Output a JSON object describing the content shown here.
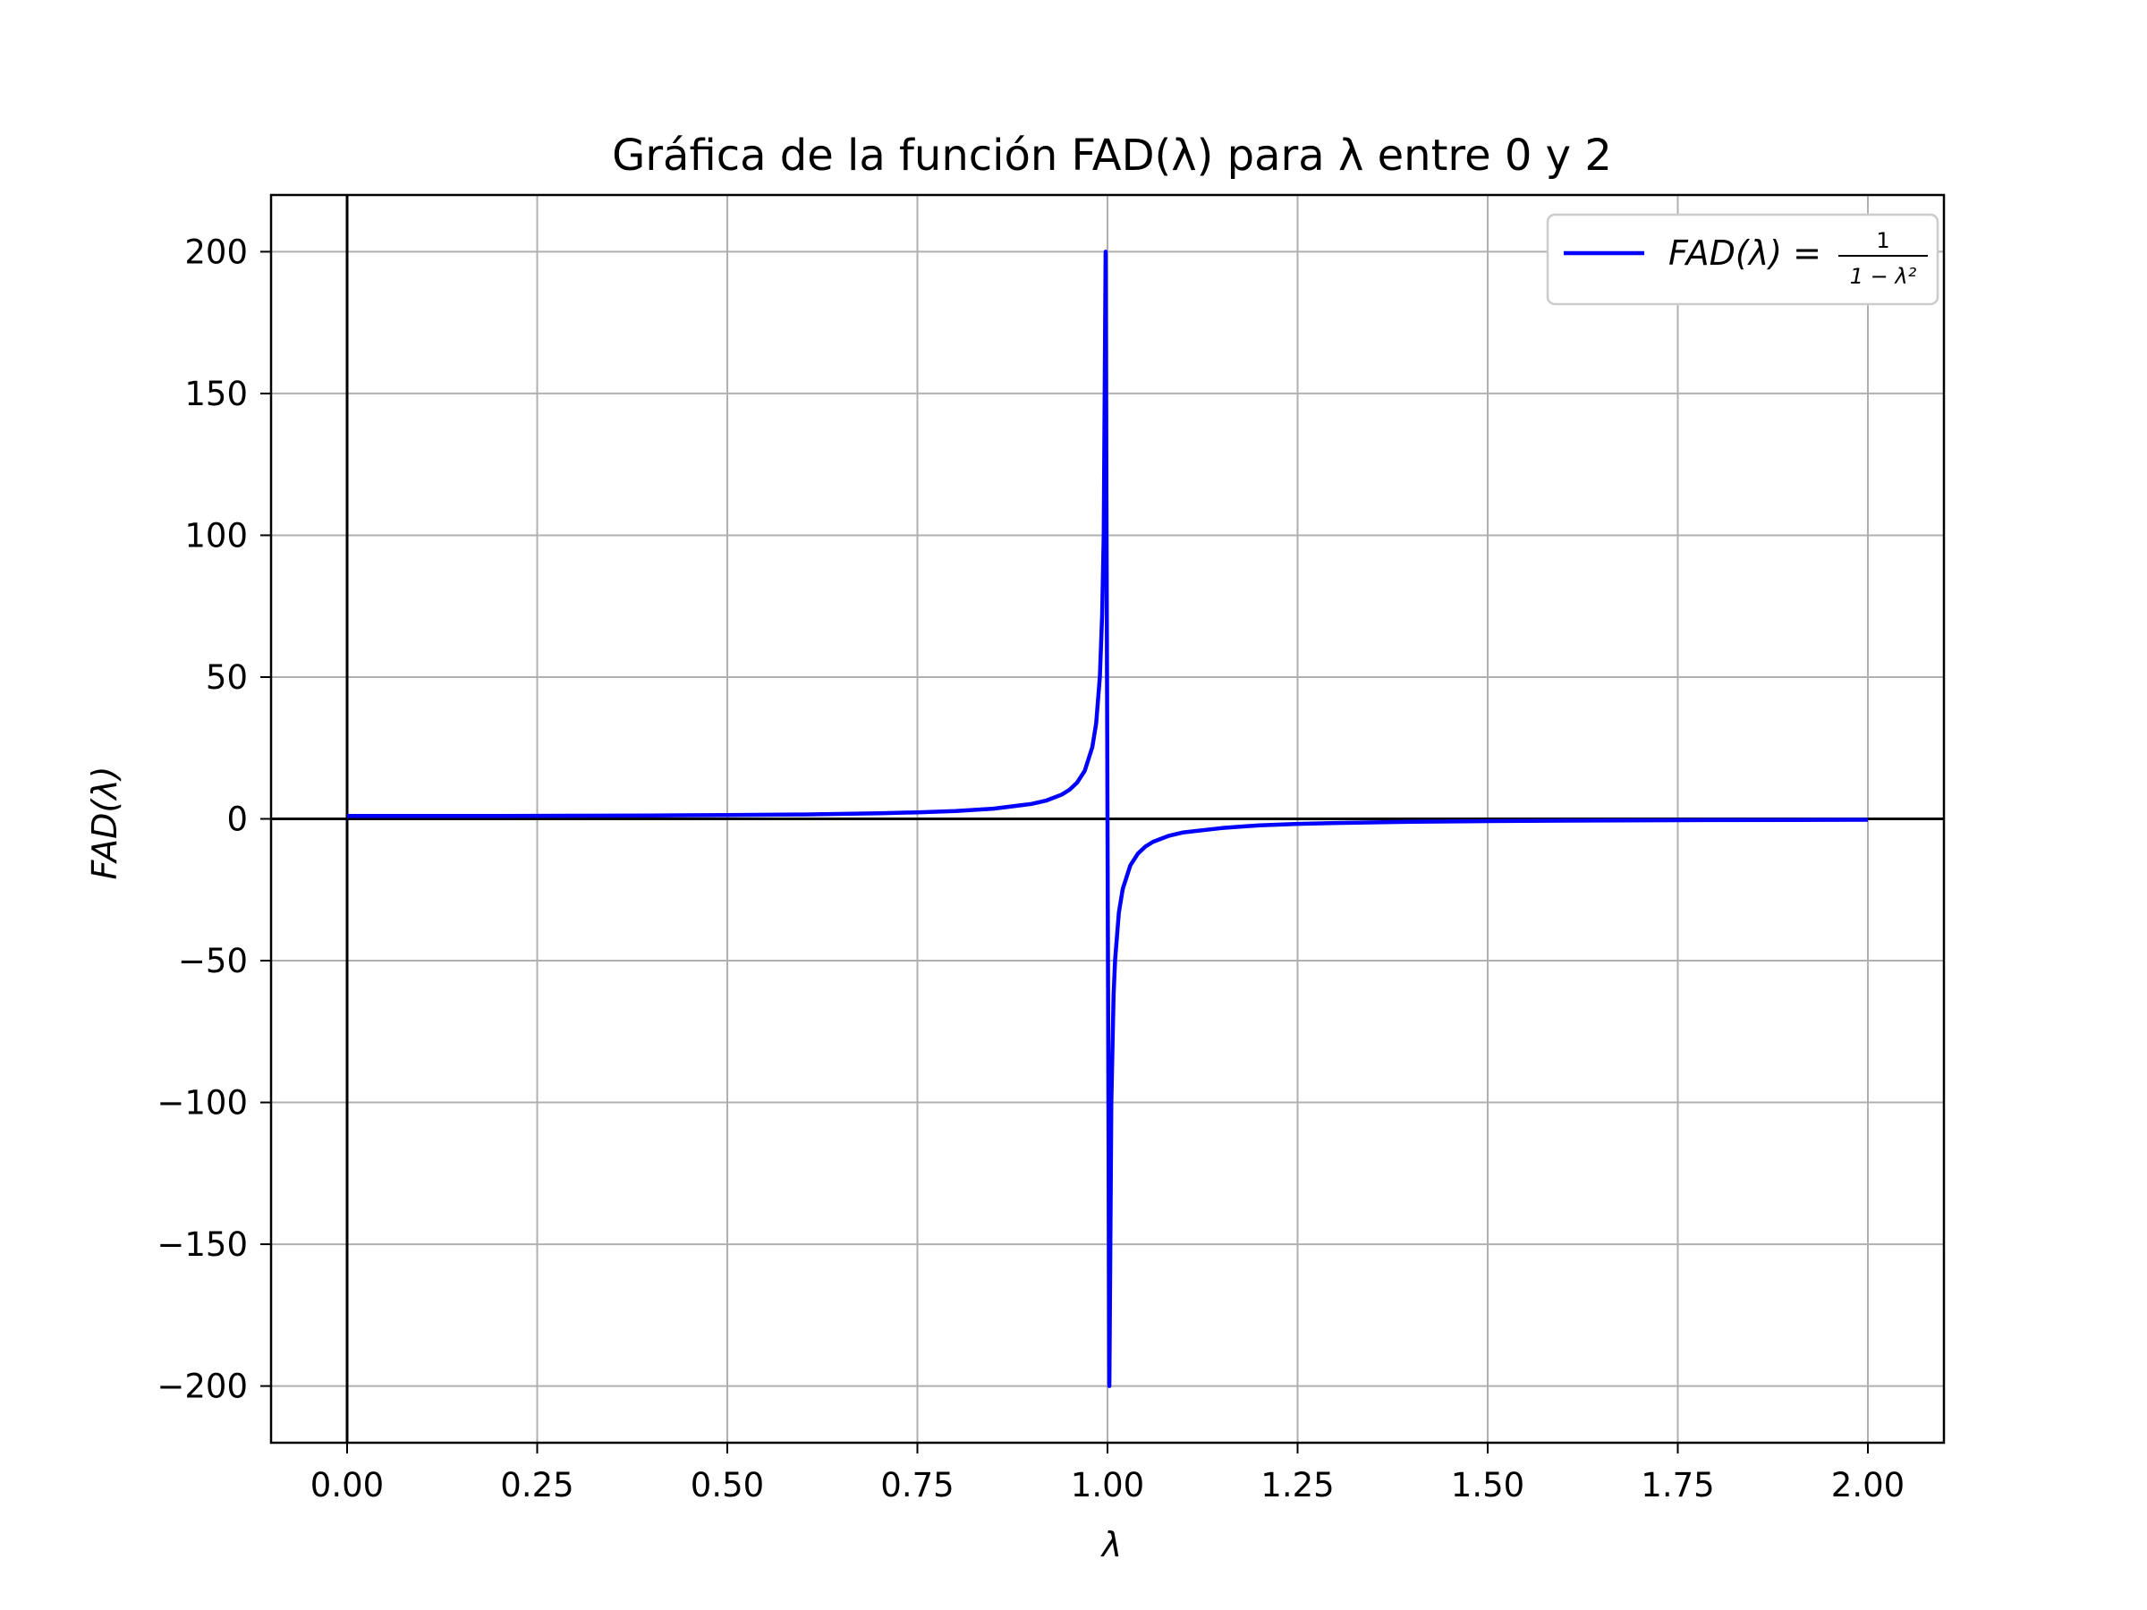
{
  "chart_data": {
    "type": "line",
    "title": "Gráfica de la función FAD(λ) para λ entre 0 y 2",
    "xlabel": "λ",
    "ylabel": "FAD(λ)",
    "xlim": [
      -0.1,
      2.1
    ],
    "ylim": [
      -220,
      220
    ],
    "xticks": [
      0.0,
      0.25,
      0.5,
      0.75,
      1.0,
      1.25,
      1.5,
      1.75,
      2.0
    ],
    "xtick_labels": [
      "0.00",
      "0.25",
      "0.50",
      "0.75",
      "1.00",
      "1.25",
      "1.50",
      "1.75",
      "2.00"
    ],
    "yticks": [
      200,
      150,
      100,
      50,
      0,
      -50,
      -100,
      -150,
      -200
    ],
    "ytick_labels": [
      "200",
      "150",
      "100",
      "50",
      "0",
      "−50",
      "−100",
      "−150",
      "−200"
    ],
    "grid": true,
    "reference_lines": {
      "horizontal_y": 0,
      "vertical_x": 0,
      "color": "#000000"
    },
    "legend": {
      "position": "top-right",
      "label_lhs": "FAD(λ) =",
      "label_numerator": "1",
      "label_denominator": "1 − λ²"
    },
    "series": [
      {
        "name": "FAD(λ) = 1/(1−λ²)",
        "color": "#0000ff",
        "x": [
          0,
          0.1,
          0.2,
          0.3,
          0.4,
          0.5,
          0.6,
          0.7,
          0.75,
          0.8,
          0.85,
          0.9,
          0.92,
          0.94,
          0.95,
          0.96,
          0.97,
          0.98,
          0.985,
          0.99,
          0.993,
          0.995,
          0.9975,
          1.0025,
          1.005,
          1.008,
          1.01,
          1.015,
          1.02,
          1.03,
          1.04,
          1.05,
          1.06,
          1.08,
          1.1,
          1.15,
          1.2,
          1.25,
          1.3,
          1.4,
          1.5,
          1.6,
          1.75,
          1.9,
          2.0
        ],
        "y": [
          1.0,
          1.01,
          1.04,
          1.1,
          1.19,
          1.33,
          1.56,
          1.96,
          2.29,
          2.78,
          3.6,
          5.26,
          6.51,
          8.59,
          10.26,
          12.76,
          16.92,
          25.25,
          33.58,
          50.25,
          71.68,
          100.25,
          200.0,
          -200.0,
          -99.75,
          -62.25,
          -49.75,
          -33.08,
          -24.75,
          -16.42,
          -12.25,
          -9.76,
          -8.09,
          -6.01,
          -4.76,
          -3.26,
          -2.27,
          -1.78,
          -1.45,
          -1.04,
          -0.8,
          -0.64,
          -0.48,
          -0.38,
          -0.33
        ]
      }
    ]
  }
}
